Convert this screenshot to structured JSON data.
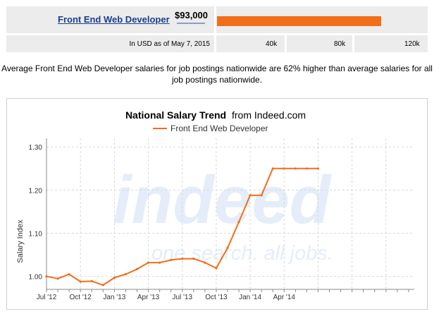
{
  "header": {
    "job_title": "Front End Web Developer",
    "salary": "$93,000",
    "salary_bar_fraction": 0.775,
    "as_of": "In USD as of May 7, 2015",
    "scale_ticks": [
      "40k",
      "80k",
      "120k"
    ]
  },
  "summary": "Average Front End Web Developer salaries for job postings nationwide are 62% higher than average salaries for all job postings nationwide.",
  "chart_data": {
    "type": "line",
    "title": "National Salary Trend",
    "title_suffix": "from Indeed.com",
    "ylabel": "Salary Index",
    "xlabel": "",
    "ylim": [
      0.97,
      1.32
    ],
    "yticks": [
      1.0,
      1.1,
      1.2,
      1.3
    ],
    "ytick_labels": [
      "1.00",
      "1.10",
      "1.20",
      "1.30"
    ],
    "xlim": [
      0,
      32.5
    ],
    "xticks": [
      0,
      3,
      6,
      9,
      12,
      15,
      18,
      21,
      24,
      27,
      30
    ],
    "xtick_labels": [
      "Jul '12",
      "Oct '12",
      "Jan '13",
      "Apr '13",
      "Jul '13",
      "Oct '13",
      "Jan '14",
      "Apr '14"
    ],
    "xtick_label_months": [
      0,
      3,
      6,
      9,
      12,
      15,
      18,
      21
    ],
    "watermark_logo": "indeed",
    "watermark_tagline": "one search. all jobs.",
    "grid": true,
    "legend_position": "top",
    "series": [
      {
        "name": "Front End Web Developer",
        "color": "#f26e1a",
        "x": [
          0,
          1,
          2,
          3,
          4,
          5,
          6,
          7,
          8,
          9,
          10,
          11,
          12,
          13,
          14,
          15,
          16,
          17,
          18,
          19,
          20,
          21,
          22,
          23,
          24
        ],
        "values": [
          1.0,
          0.995,
          1.005,
          0.988,
          0.989,
          0.98,
          0.997,
          1.005,
          1.017,
          1.032,
          1.032,
          1.038,
          1.041,
          1.041,
          1.032,
          1.019,
          1.066,
          1.126,
          1.188,
          1.188,
          1.25,
          1.25,
          1.25,
          1.25,
          1.25
        ]
      }
    ]
  }
}
